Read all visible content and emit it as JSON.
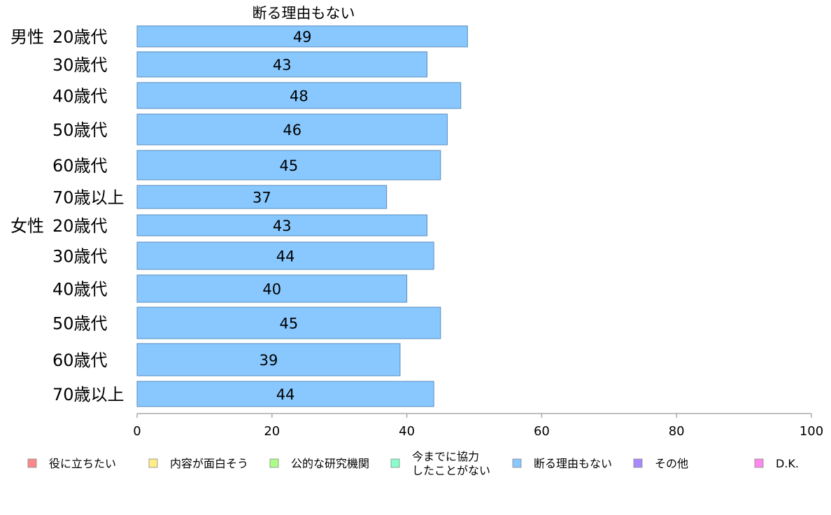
{
  "chart_data": {
    "type": "bar",
    "orientation": "horizontal",
    "title": "断る理由もない",
    "groups": [
      {
        "label": "男性",
        "start": 0
      },
      {
        "label": "女性",
        "start": 6
      }
    ],
    "categories": [
      "20歳代",
      "30歳代",
      "40歳代",
      "50歳代",
      "60歳代",
      "70歳以上",
      "20歳代",
      "30歳代",
      "40歳代",
      "50歳代",
      "60歳代",
      "70歳以上"
    ],
    "values": [
      49,
      43,
      48,
      46,
      45,
      37,
      43,
      44,
      40,
      45,
      39,
      44
    ],
    "value_labels": [
      "49",
      "43",
      "48",
      "46",
      "45",
      "37",
      "43",
      "44",
      "40",
      "45",
      "39",
      "44"
    ],
    "bar_color": "#88c8ff",
    "xlim": [
      0,
      100
    ],
    "ticks": [
      0,
      20,
      40,
      60,
      80,
      100
    ],
    "tick_labels": [
      "0",
      "20",
      "40",
      "60",
      "80",
      "100"
    ],
    "grid": false,
    "legend_position": "bottom",
    "legend": [
      {
        "lines": [
          "役に立ちたい"
        ],
        "color": "#ff8888"
      },
      {
        "lines": [
          "内容が面白そう"
        ],
        "color": "#ffee88"
      },
      {
        "lines": [
          "公的な研究機関"
        ],
        "color": "#aaff88"
      },
      {
        "lines": [
          "今までに協力",
          "したことがない"
        ],
        "color": "#88ffcc"
      },
      {
        "lines": [
          "断る理由もない"
        ],
        "color": "#88c8ff"
      },
      {
        "lines": [
          "その他"
        ],
        "color": "#aa88ff"
      },
      {
        "lines": [
          "D.K."
        ],
        "color": "#ff88ee"
      }
    ]
  }
}
